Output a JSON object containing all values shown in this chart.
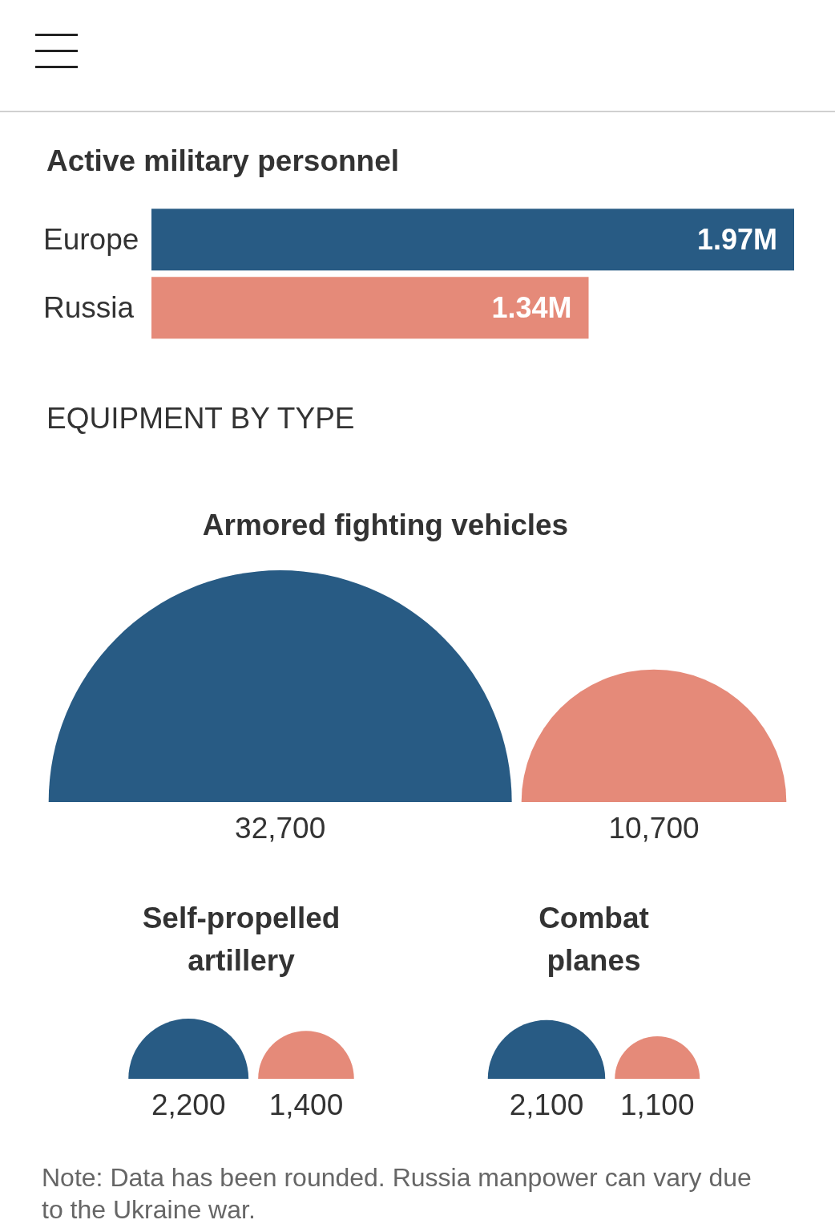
{
  "chart_data": [
    {
      "type": "bar",
      "orientation": "horizontal",
      "title": "Active military personnel",
      "categories": [
        "Europe",
        "Russia"
      ],
      "values": [
        1.97,
        1.34
      ],
      "colors": [
        "#285b84",
        "#e58a79"
      ],
      "value_labels": [
        "1.97M",
        "1.34M"
      ],
      "xlim": [
        0,
        1.97
      ],
      "tick_labels": "y"
    },
    {
      "type": "other",
      "title": "EQUIPMENT BY TYPE",
      "subtitle": "Armored fighting vehicles",
      "values": [
        32700,
        10700
      ],
      "colors": [
        "#285b84",
        "#e58a79"
      ],
      "value_labels": [
        "32,700",
        "10,700"
      ]
    },
    {
      "type": "other",
      "title": "Self-propelled artillery",
      "values": [
        2200,
        1400
      ],
      "colors": [
        "#285b84",
        "#e58a79"
      ],
      "value_labels": [
        "2,200",
        "1,400"
      ]
    },
    {
      "type": "other",
      "title": "Combat planes",
      "values": [
        2100,
        1100
      ],
      "colors": [
        "#285b84",
        "#e58a79"
      ],
      "value_labels": [
        "2,100",
        "1,100"
      ],
      "annotations": [
        "Note: Data has been rounded. Russia manpower can vary due to the Ukraine war."
      ]
    }
  ]
}
